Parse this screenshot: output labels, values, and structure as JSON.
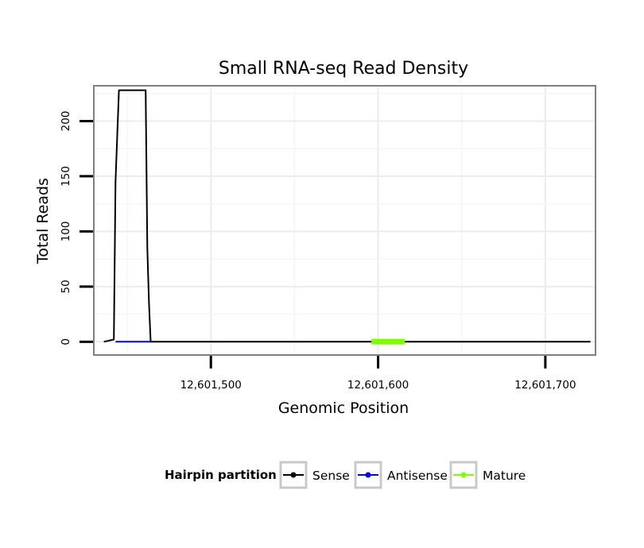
{
  "chart_data": {
    "type": "line",
    "title": "Small RNA-seq Read Density",
    "xlabel": "Genomic Position",
    "ylabel": "Total Reads",
    "xlim": [
      12601430,
      12601730
    ],
    "ylim": [
      -12,
      232
    ],
    "x_ticks": [
      12601500,
      12601600,
      12601700
    ],
    "x_tick_labels": [
      "12,601,500",
      "12,601,600",
      "12,601,700"
    ],
    "y_ticks": [
      0,
      50,
      100,
      150,
      200
    ],
    "y_tick_labels": [
      "0",
      "50",
      "100",
      "150",
      "200"
    ],
    "grid": true,
    "legend": {
      "title": "Hairpin partition",
      "position": "bottom",
      "entries": [
        {
          "label": "Sense",
          "color": "#000000"
        },
        {
          "label": "Antisense",
          "color": "#0000ff"
        },
        {
          "label": "Mature",
          "color": "#7fff00"
        }
      ]
    },
    "series": [
      {
        "name": "Sense",
        "color": "#000000",
        "x": [
          12601436,
          12601442,
          12601443,
          12601445,
          12601446,
          12601461,
          12601462,
          12601463,
          12601464,
          12601727
        ],
        "y": [
          0,
          2,
          145,
          228,
          228,
          228,
          85,
          35,
          0,
          0
        ]
      },
      {
        "name": "Antisense",
        "color": "#0000ff",
        "x": [
          12601443,
          12601464
        ],
        "y": [
          0,
          0
        ]
      },
      {
        "name": "Mature",
        "color": "#7fff00",
        "x": [
          12601596,
          12601616
        ],
        "y": [
          0,
          0
        ]
      }
    ]
  }
}
